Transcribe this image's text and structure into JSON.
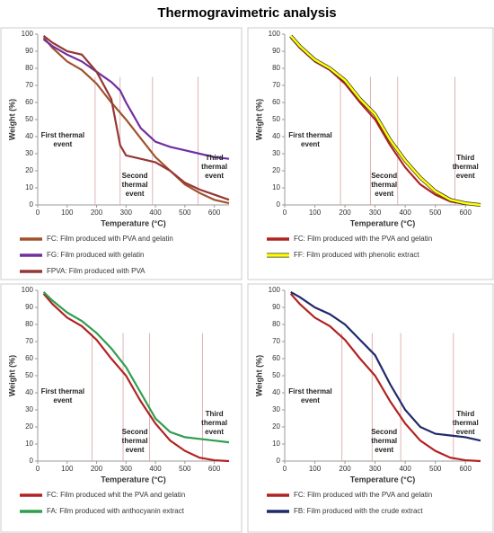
{
  "title": "Thermogravimetric analysis",
  "chart_data": [
    {
      "type": "line",
      "xlabel": "Temperature (°C)",
      "ylabel": "Weight (%)",
      "xlim": [
        0,
        650
      ],
      "ylim": [
        0,
        100
      ],
      "xticks": [
        0,
        100,
        200,
        300,
        400,
        500,
        600
      ],
      "yticks": [
        0,
        10,
        20,
        30,
        40,
        50,
        60,
        70,
        80,
        90,
        100
      ],
      "x": [
        20,
        50,
        100,
        150,
        200,
        250,
        280,
        300,
        350,
        400,
        450,
        500,
        550,
        600,
        650
      ],
      "series": [
        {
          "name": "FC: Film produced with PVA and gelatin",
          "color": "#a0522d",
          "values": [
            98,
            92,
            84,
            79,
            71,
            60,
            54,
            50,
            39,
            28,
            20,
            12,
            7,
            3,
            1
          ]
        },
        {
          "name": "FG: Film produced with gelatin",
          "color": "#7030a0",
          "values": [
            97,
            93,
            88,
            84,
            78,
            72,
            67,
            60,
            45,
            37,
            34,
            32,
            30,
            28,
            27
          ]
        },
        {
          "name": "FPVA: Film produced with PVA",
          "color": "#953735",
          "values": [
            99,
            95,
            90,
            88,
            78,
            62,
            35,
            29,
            27,
            25,
            20,
            13,
            9,
            6,
            3
          ]
        }
      ],
      "vlines": [
        195,
        280,
        390,
        545
      ],
      "annotations": [
        "First thermal event",
        "Second thermal event",
        "Third thermal event"
      ]
    },
    {
      "type": "line",
      "xlabel": "Temperature (°C)",
      "ylabel": "Weight (%)",
      "xlim": [
        0,
        650
      ],
      "ylim": [
        0,
        100
      ],
      "xticks": [
        0,
        100,
        200,
        300,
        400,
        500,
        600
      ],
      "yticks": [
        0,
        10,
        20,
        30,
        40,
        50,
        60,
        70,
        80,
        90,
        100
      ],
      "x": [
        20,
        50,
        100,
        150,
        200,
        250,
        300,
        350,
        400,
        450,
        500,
        550,
        600,
        650
      ],
      "series": [
        {
          "name": "FC: Film produced with the PVA and gelatin",
          "color": "#b22222",
          "values": [
            98,
            92,
            84,
            79,
            71,
            60,
            50,
            35,
            22,
            12,
            6,
            2,
            0.5,
            0
          ]
        },
        {
          "name": "FF: Film produced with phenolic extract",
          "color": "#ffff00",
          "outline": "#333333",
          "values": [
            99,
            93,
            85,
            80,
            73,
            62,
            53,
            38,
            26,
            16,
            8,
            3,
            1,
            0
          ]
        }
      ],
      "vlines": [
        185,
        285,
        375,
        565
      ],
      "annotations": [
        "First thermal event",
        "Second thermal event",
        "Third thermal event"
      ]
    },
    {
      "type": "line",
      "xlabel": "Temperature (°C)",
      "ylabel": "Weight (%)",
      "xlim": [
        0,
        650
      ],
      "ylim": [
        0,
        100
      ],
      "xticks": [
        0,
        100,
        200,
        300,
        400,
        500,
        600
      ],
      "yticks": [
        0,
        10,
        20,
        30,
        40,
        50,
        60,
        70,
        80,
        90,
        100
      ],
      "x": [
        20,
        50,
        100,
        150,
        200,
        250,
        300,
        350,
        400,
        450,
        500,
        550,
        600,
        650
      ],
      "series": [
        {
          "name": "FC: Film produced whit the PVA and gelatin",
          "color": "#b22222",
          "values": [
            98,
            92,
            84,
            79,
            71,
            60,
            50,
            35,
            22,
            12,
            6,
            2,
            0.5,
            0
          ]
        },
        {
          "name": "FA: Film produced with anthocyanin extract",
          "color": "#2e9e4f",
          "values": [
            99,
            94,
            87,
            82,
            75,
            66,
            55,
            40,
            25,
            17,
            14,
            13,
            12,
            11
          ]
        }
      ],
      "vlines": [
        185,
        290,
        380,
        560
      ],
      "annotations": [
        "First thermal event",
        "Second thermal event",
        "Third thermal event"
      ]
    },
    {
      "type": "line",
      "xlabel": "Temperature (°C)",
      "ylabel": "Weight (%)",
      "xlim": [
        0,
        650
      ],
      "ylim": [
        0,
        100
      ],
      "xticks": [
        0,
        100,
        200,
        300,
        400,
        500,
        600
      ],
      "yticks": [
        0,
        10,
        20,
        30,
        40,
        50,
        60,
        70,
        80,
        90,
        100
      ],
      "x": [
        20,
        50,
        100,
        150,
        200,
        250,
        300,
        350,
        400,
        450,
        500,
        550,
        600,
        650
      ],
      "series": [
        {
          "name": "FC: Film produced with the PVA and gelatin",
          "color": "#b22222",
          "values": [
            98,
            92,
            84,
            79,
            71,
            60,
            50,
            35,
            22,
            12,
            6,
            2,
            0.5,
            0
          ]
        },
        {
          "name": "FB: Film produced with the crude extract",
          "color": "#1f2a6b",
          "values": [
            99,
            96,
            90,
            86,
            80,
            71,
            62,
            45,
            30,
            20,
            16,
            15,
            14,
            12
          ]
        }
      ],
      "vlines": [
        190,
        290,
        385,
        560
      ],
      "annotations": [
        "First thermal event",
        "Second thermal event",
        "Third thermal event"
      ]
    }
  ]
}
